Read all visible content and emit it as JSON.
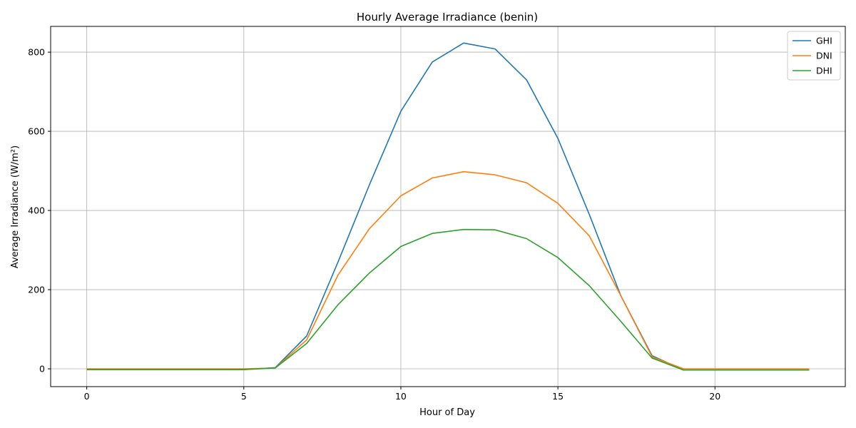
{
  "chart_data": {
    "type": "line",
    "title": "Hourly Average Irradiance (benin)",
    "xlabel": "Hour of Day",
    "ylabel": "Average Irradiance (W/m²)",
    "xlim": [
      -1.15,
      24.15
    ],
    "ylim": [
      -45,
      865
    ],
    "xticks": [
      0,
      5,
      10,
      15,
      20
    ],
    "yticks": [
      0,
      200,
      400,
      600,
      800
    ],
    "grid": true,
    "legend_position": "top-right",
    "x": [
      0,
      1,
      2,
      3,
      4,
      5,
      6,
      7,
      8,
      9,
      10,
      11,
      12,
      13,
      14,
      15,
      16,
      17,
      18,
      19,
      20,
      21,
      22,
      23
    ],
    "series": [
      {
        "name": "GHI",
        "color": "#1f77b4",
        "values": [
          -2,
          -2,
          -2,
          -2,
          -2,
          -2,
          3,
          83,
          270,
          465,
          651,
          775,
          823,
          808,
          730,
          582,
          390,
          185,
          33,
          -3,
          -3,
          -3,
          -3,
          -3
        ]
      },
      {
        "name": "DNI",
        "color": "#ff7f0e",
        "values": [
          0,
          0,
          0,
          0,
          0,
          0,
          2,
          73,
          237,
          354,
          437,
          482,
          498,
          490,
          470,
          418,
          336,
          185,
          30,
          0,
          0,
          0,
          0,
          0
        ]
      },
      {
        "name": "DHI",
        "color": "#2ca02c",
        "values": [
          -2,
          -2,
          -2,
          -2,
          -2,
          -2,
          2,
          64,
          162,
          242,
          309,
          342,
          352,
          351,
          329,
          281,
          210,
          120,
          27,
          -3,
          -3,
          -3,
          -3,
          -3
        ]
      }
    ]
  }
}
